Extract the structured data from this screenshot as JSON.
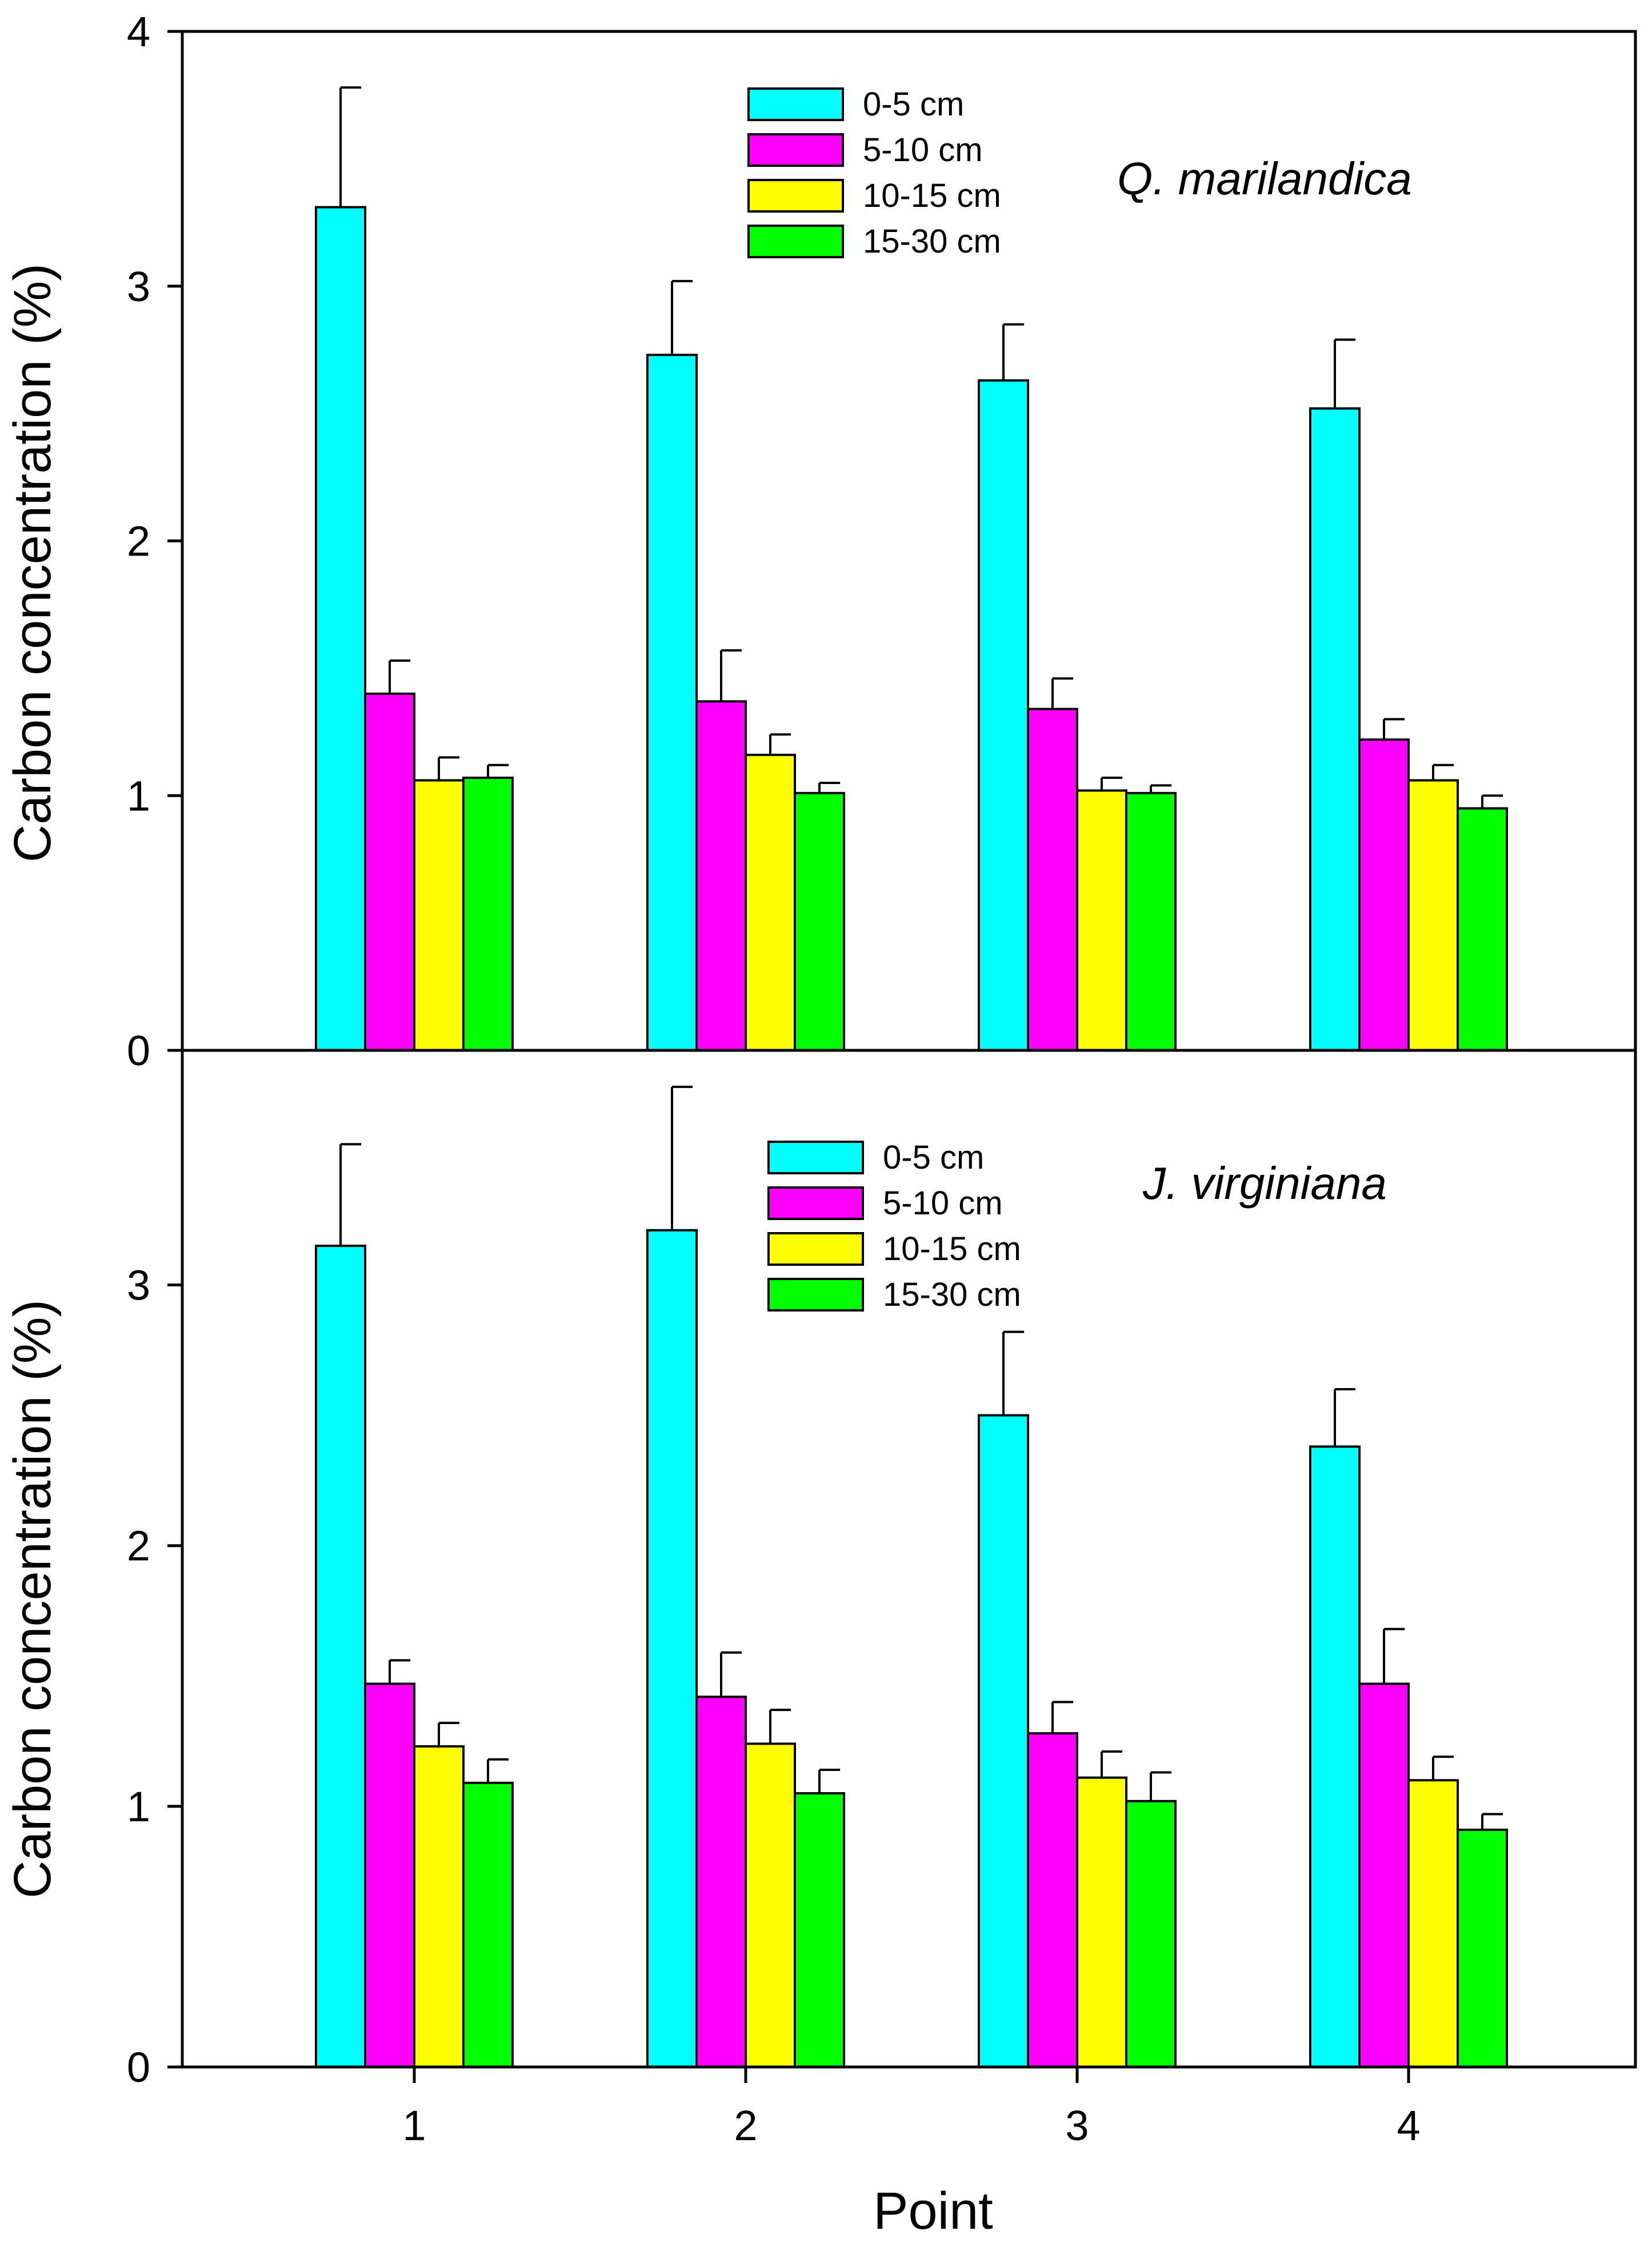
{
  "figure": {
    "xlabel": "Point",
    "categories": [
      "1",
      "2",
      "3",
      "4"
    ]
  },
  "colors": {
    "series": [
      "#00ffff",
      "#ff00ff",
      "#ffff00",
      "#00ff00"
    ],
    "bar_outline": "#000000",
    "axis": "#000000"
  },
  "chart_data": [
    {
      "type": "bar",
      "title": "Q. marilandica",
      "xlabel": "Point",
      "ylabel": "Carbon concentration (%)",
      "ylim": [
        0,
        4
      ],
      "yticks": [
        "0",
        "1",
        "2",
        "3",
        "4"
      ],
      "categories": [
        "1",
        "2",
        "3",
        "4"
      ],
      "series": [
        {
          "name": "0-5 cm",
          "values": [
            3.31,
            2.73,
            2.63,
            2.52
          ],
          "errors": [
            0.47,
            0.29,
            0.22,
            0.27
          ]
        },
        {
          "name": "5-10 cm",
          "values": [
            1.4,
            1.37,
            1.34,
            1.22
          ],
          "errors": [
            0.13,
            0.2,
            0.12,
            0.08
          ]
        },
        {
          "name": "10-15 cm",
          "values": [
            1.06,
            1.16,
            1.02,
            1.06
          ],
          "errors": [
            0.09,
            0.08,
            0.05,
            0.06
          ]
        },
        {
          "name": "15-30 cm",
          "values": [
            1.07,
            1.01,
            1.01,
            0.95
          ],
          "errors": [
            0.05,
            0.04,
            0.03,
            0.05
          ]
        }
      ],
      "legend_position": "top-center"
    },
    {
      "type": "bar",
      "title": "J. virginiana",
      "xlabel": "Point",
      "ylabel": "Carbon concentration (%)",
      "ylim": [
        0,
        3.9
      ],
      "yticks": [
        "0",
        "1",
        "2",
        "3"
      ],
      "categories": [
        "1",
        "2",
        "3",
        "4"
      ],
      "series": [
        {
          "name": "0-5 cm",
          "values": [
            3.15,
            3.21,
            2.5,
            2.38
          ],
          "errors": [
            0.39,
            0.55,
            0.32,
            0.22
          ]
        },
        {
          "name": "5-10 cm",
          "values": [
            1.47,
            1.42,
            1.28,
            1.47
          ],
          "errors": [
            0.09,
            0.17,
            0.12,
            0.21
          ]
        },
        {
          "name": "10-15 cm",
          "values": [
            1.23,
            1.24,
            1.11,
            1.1
          ],
          "errors": [
            0.09,
            0.13,
            0.1,
            0.09
          ]
        },
        {
          "name": "15-30 cm",
          "values": [
            1.09,
            1.05,
            1.02,
            0.91
          ],
          "errors": [
            0.09,
            0.09,
            0.11,
            0.06
          ]
        }
      ],
      "legend_position": "top-center"
    }
  ]
}
